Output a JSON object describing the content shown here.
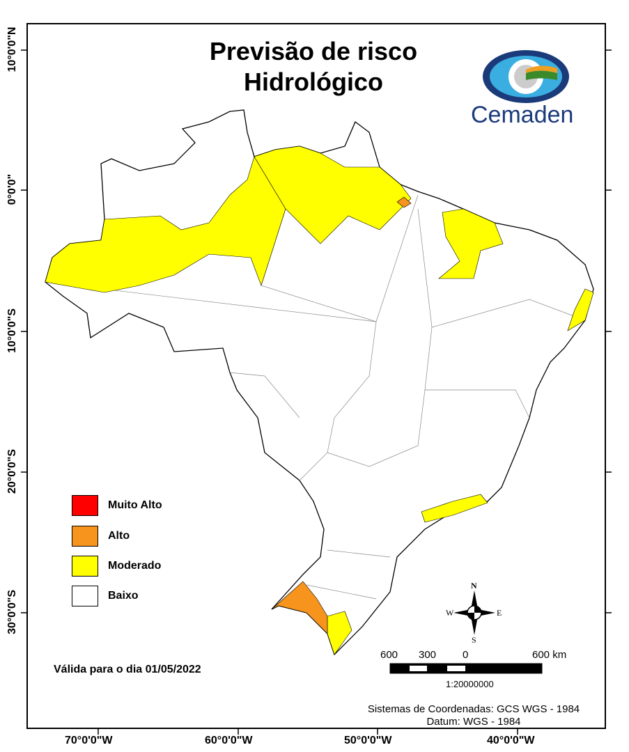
{
  "title": {
    "line1": "Previsão de risco",
    "line2": "Hidrológico"
  },
  "logo": {
    "text": "Cemaden"
  },
  "axes": {
    "lon_ticks": [
      "70°0'0\"W",
      "60°0'0\"W",
      "50°0'0\"W",
      "40°0'0\"W"
    ],
    "lat_ticks": [
      "10°0'0\"N",
      "0°0'0\"",
      "10°0'0\"S",
      "20°0'0\"S",
      "30°0'0\"S"
    ]
  },
  "legend": [
    {
      "label": "Muito Alto",
      "color": "#ff0000"
    },
    {
      "label": "Alto",
      "color": "#f7941d"
    },
    {
      "label": "Moderado",
      "color": "#ffff00"
    },
    {
      "label": "Baixo",
      "color": "#ffffff"
    }
  ],
  "valid_date": "Válida para o dia 01/05/2022",
  "compass": {
    "n": "N",
    "s": "S",
    "e": "E",
    "w": "W"
  },
  "scale": {
    "labels": [
      "600",
      "300",
      "0",
      "600 km"
    ],
    "ratio": "1:20000000"
  },
  "coords": {
    "system": "Sistemas de Coordenadas: GCS WGS - 1984",
    "datum": "Datum: WGS - 1984"
  }
}
